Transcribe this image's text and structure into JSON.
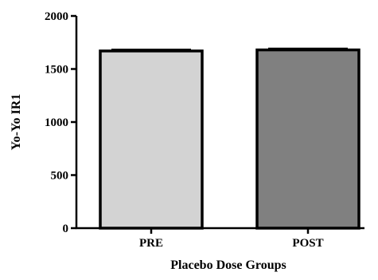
{
  "chart_data": {
    "type": "bar",
    "categories": [
      "PRE",
      "POST"
    ],
    "values": [
      1670,
      1680
    ],
    "errors": [
      12,
      12
    ],
    "bar_colors": [
      "#d3d3d3",
      "#808080"
    ],
    "xlabel": "Placebo Dose Groups",
    "ylabel": "Yo-Yo IR1",
    "ylim": [
      0,
      2000
    ],
    "yticks": [
      0,
      500,
      1000,
      1500,
      2000
    ],
    "grid": false,
    "legend": "none"
  }
}
